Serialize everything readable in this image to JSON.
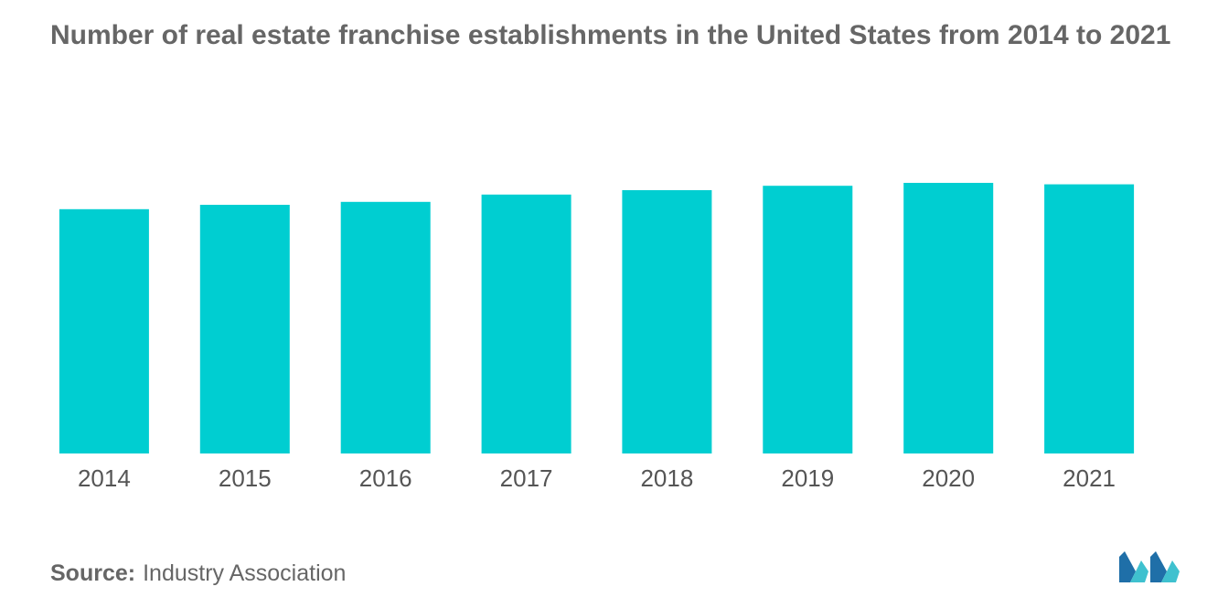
{
  "title": "Number of real estate franchise establishments in the United States from 2014 to 2021",
  "source": {
    "label": "Source:",
    "value": "Industry Association"
  },
  "colors": {
    "bar": "#00CED1",
    "text": "#666666",
    "logo_dark": "#1F6FA8",
    "logo_light": "#3FC1CF"
  },
  "logo": {
    "icon": "mordor-intelligence-logo"
  },
  "chart_data": {
    "type": "bar",
    "title": "Number of real estate franchise establishments in the United States from 2014 to 2021",
    "categories": [
      "2014",
      "2015",
      "2016",
      "2017",
      "2018",
      "2019",
      "2020",
      "2021"
    ],
    "values": [
      83.5,
      85.0,
      86.0,
      88.5,
      90.0,
      91.5,
      92.5,
      92.0
    ],
    "ylim": [
      0,
      100
    ],
    "xlabel": "",
    "ylabel": "",
    "grid": false,
    "legend": "none",
    "y_axis_visible": false
  }
}
